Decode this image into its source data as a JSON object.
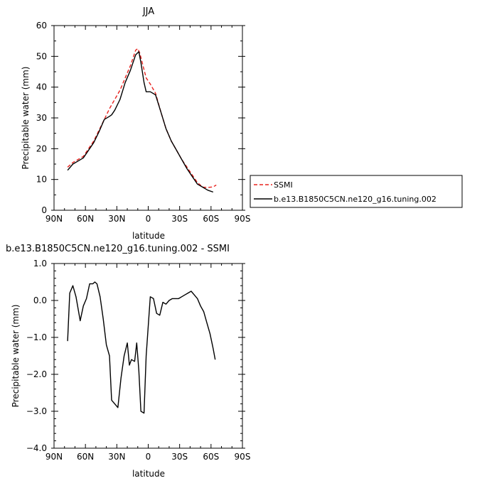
{
  "chart_data": [
    {
      "type": "line",
      "title": "JJA",
      "xlabel": "latitude",
      "ylabel": "Precipitable water (mm)",
      "xlim": [
        90,
        -90
      ],
      "ylim": [
        0,
        60
      ],
      "xticks": [
        90,
        60,
        30,
        0,
        -30,
        -60,
        -90
      ],
      "xtick_labels": [
        "90N",
        "60N",
        "30N",
        "0",
        "30S",
        "60S",
        "90S"
      ],
      "yticks": [
        0,
        10,
        20,
        30,
        40,
        50,
        60
      ],
      "ytick_labels": [
        "0",
        "10",
        "20",
        "30",
        "40",
        "50",
        "60"
      ],
      "legend_placement": "right",
      "series": [
        {
          "name": "SSMI",
          "color": "#e8231f",
          "dash": "dashed",
          "x": [
            77,
            72,
            67,
            62,
            57,
            52,
            47,
            42,
            37,
            32,
            27,
            22,
            17,
            12,
            10,
            8,
            5,
            2,
            -2,
            -7,
            -12,
            -17,
            -22,
            -27,
            -32,
            -37,
            -42,
            -47,
            -52,
            -57,
            -62,
            -65
          ],
          "y": [
            14,
            15.5,
            16.5,
            17.5,
            20,
            22.5,
            26,
            29.5,
            33,
            36,
            39,
            43,
            47,
            52,
            52.5,
            51,
            47,
            43,
            41,
            38,
            32,
            26.5,
            22.5,
            19.5,
            16.5,
            14,
            11.5,
            9,
            7.5,
            7.4,
            7.6,
            8.2
          ]
        },
        {
          "name": "b.e13.B1850C5CN.ne120_g16.tuning.002",
          "color": "#000000",
          "dash": "solid",
          "x": [
            77,
            72,
            67,
            62,
            57,
            52,
            47,
            42,
            37,
            35,
            32,
            27,
            22,
            17,
            12,
            9,
            7,
            4,
            2,
            -2,
            -7,
            -12,
            -17,
            -22,
            -27,
            -32,
            -37,
            -42,
            -47,
            -52,
            -57,
            -62
          ],
          "y": [
            13,
            15,
            16,
            17,
            19.5,
            22,
            25.5,
            29.5,
            30.5,
            31,
            32.5,
            36,
            41.5,
            45.5,
            50.5,
            51.5,
            48,
            41.5,
            38.5,
            38.5,
            37.5,
            32,
            26.5,
            22.5,
            19.5,
            16.5,
            13.5,
            11,
            8.5,
            7.5,
            6.5,
            5.9
          ]
        }
      ]
    },
    {
      "type": "line",
      "title": "b.e13.B1850C5CN.ne120_g16.tuning.002 - SSMI",
      "xlabel": "latitude",
      "ylabel": "Precipitable water (mm)",
      "xlim": [
        90,
        -90
      ],
      "ylim": [
        -4.0,
        1.0
      ],
      "xticks": [
        90,
        60,
        30,
        0,
        -30,
        -60,
        -90
      ],
      "xtick_labels": [
        "90N",
        "60N",
        "30N",
        "0",
        "30S",
        "60S",
        "90S"
      ],
      "yticks": [
        -4.0,
        -3.0,
        -2.0,
        -1.0,
        0.0,
        1.0
      ],
      "ytick_labels": [
        "−4.0",
        "−3.0",
        "−2.0",
        "−1.0",
        "0.0",
        "1.0"
      ],
      "series": [
        {
          "color": "#000000",
          "dash": "solid",
          "x": [
            77,
            75,
            72,
            69,
            65,
            62,
            59,
            56,
            53,
            51,
            49,
            46,
            43,
            40,
            37,
            35,
            32,
            29,
            26,
            23,
            20,
            18,
            16,
            13,
            11,
            9,
            7,
            4,
            2,
            -2,
            -5,
            -8,
            -11,
            -14,
            -17,
            -20,
            -23,
            -26,
            -29,
            -32,
            -35,
            -38,
            -41,
            -44,
            -47,
            -50,
            -53,
            -56,
            -59,
            -62,
            -64
          ],
          "y": [
            -1.1,
            0.2,
            0.4,
            0.1,
            -0.55,
            -0.15,
            0.05,
            0.45,
            0.45,
            0.5,
            0.45,
            0.1,
            -0.5,
            -1.2,
            -1.5,
            -2.7,
            -2.8,
            -2.9,
            -2.1,
            -1.5,
            -1.15,
            -1.75,
            -1.6,
            -1.65,
            -1.15,
            -1.9,
            -3.0,
            -3.05,
            -1.5,
            0.1,
            0.05,
            -0.35,
            -0.4,
            -0.05,
            -0.1,
            0.0,
            0.05,
            0.05,
            0.05,
            0.1,
            0.15,
            0.2,
            0.25,
            0.15,
            0.05,
            -0.15,
            -0.3,
            -0.6,
            -0.9,
            -1.3,
            -1.6
          ]
        }
      ]
    }
  ]
}
